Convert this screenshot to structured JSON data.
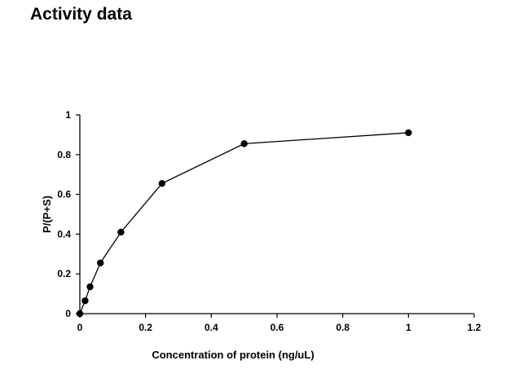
{
  "page": {
    "heading": "Activity data"
  },
  "chart_data": {
    "type": "line",
    "title": "",
    "xlabel": "Concentration of protein (ng/uL)",
    "ylabel": "P/(P+S)",
    "xlim": [
      0,
      1.2
    ],
    "ylim": [
      0,
      1
    ],
    "x_ticks": [
      "0",
      "0.2",
      "0.4",
      "0.6",
      "0.8",
      "1",
      "1.2"
    ],
    "y_ticks": [
      "0",
      "0.2",
      "0.4",
      "0.6",
      "0.8",
      "1"
    ],
    "grid": false,
    "legend": "none",
    "series": [
      {
        "x": [
          0,
          0.016,
          0.031,
          0.0625,
          0.125,
          0.25,
          0.5,
          1.0
        ],
        "y": [
          0,
          0.065,
          0.135,
          0.255,
          0.41,
          0.655,
          0.855,
          0.91
        ],
        "color": "#000000",
        "marker": "circle"
      }
    ]
  }
}
